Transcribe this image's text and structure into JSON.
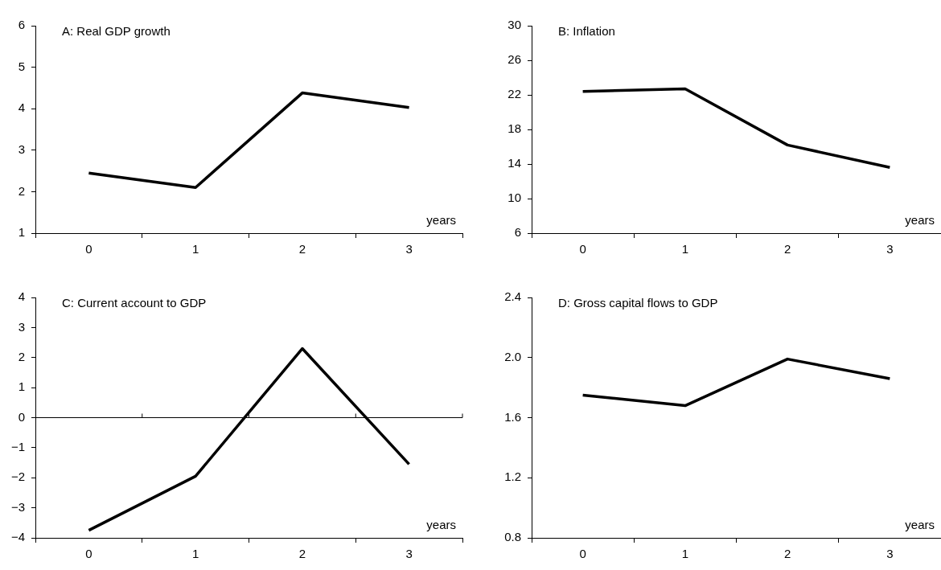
{
  "chart_data": [
    {
      "type": "line",
      "title": "A: Real GDP growth",
      "xlabel": "years",
      "categories": [
        "0",
        "1",
        "2",
        "3"
      ],
      "values": [
        2.45,
        2.1,
        4.38,
        4.03
      ],
      "color": "#000000",
      "ylim": [
        1,
        6
      ],
      "yticks": [
        1,
        2,
        3,
        4,
        5,
        6
      ],
      "grid": false,
      "marker": "none",
      "line_style": "solid"
    },
    {
      "type": "line",
      "title": "B: Inflation",
      "xlabel": "years",
      "categories": [
        "0",
        "1",
        "2",
        "3"
      ],
      "values": [
        22.4,
        22.7,
        16.2,
        13.6
      ],
      "color": "#000000",
      "ylim": [
        6,
        30
      ],
      "yticks": [
        6,
        10,
        14,
        18,
        22,
        26,
        30
      ],
      "grid": false,
      "marker": "none",
      "line_style": "solid"
    },
    {
      "type": "line",
      "title": "C: Current account to GDP",
      "xlabel": "years",
      "categories": [
        "0",
        "1",
        "2",
        "3"
      ],
      "values": [
        -3.75,
        -1.95,
        2.3,
        -1.55
      ],
      "color": "#000000",
      "ylim": [
        -4,
        4
      ],
      "yticks": [
        {
          "value": -4,
          "label": "−4"
        },
        {
          "value": -3,
          "label": "−3"
        },
        {
          "value": -2,
          "label": "−2"
        },
        {
          "value": -1,
          "label": "−1"
        },
        0,
        1,
        2,
        3,
        4
      ],
      "grid": false,
      "marker": "none",
      "line_style": "solid",
      "ref_lines": [
        {
          "axis": "y",
          "value": 0,
          "color": "#000000"
        }
      ]
    },
    {
      "type": "line",
      "title": "D: Gross capital flows to GDP",
      "xlabel": "years",
      "categories": [
        "0",
        "1",
        "2",
        "3"
      ],
      "values": [
        1.75,
        1.68,
        1.99,
        1.86
      ],
      "color": "#000000",
      "ylim": [
        0.8,
        2.4
      ],
      "yticks": [
        {
          "value": 0.8,
          "label": "0.8"
        },
        {
          "value": 1.2,
          "label": "1.2"
        },
        {
          "value": 1.6,
          "label": "1.6"
        },
        {
          "value": 2,
          "label": "2.0"
        },
        {
          "value": 2.4,
          "label": "2.4"
        }
      ],
      "grid": false,
      "marker": "none",
      "line_style": "solid"
    }
  ]
}
